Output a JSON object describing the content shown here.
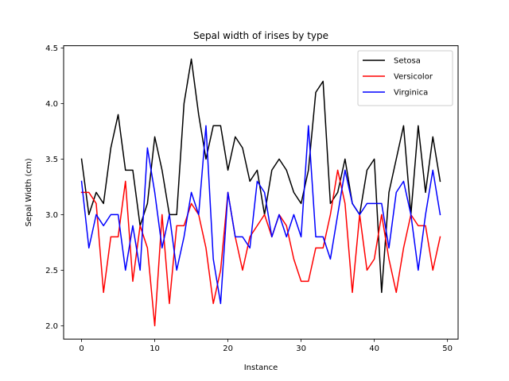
{
  "chart_data": {
    "type": "line",
    "title": "Sepal width of irises by type",
    "xlabel": "Instance",
    "ylabel": "Sepal Width (cm)",
    "xlim": [
      -2.45,
      51.45
    ],
    "ylim": [
      1.88,
      4.52
    ],
    "xticks": [
      0,
      10,
      20,
      30,
      40,
      50
    ],
    "yticks": [
      2.0,
      2.5,
      3.0,
      3.5,
      4.0,
      4.5
    ],
    "ytick_labels": [
      "2.0",
      "2.5",
      "3.0",
      "3.5",
      "4.0",
      "4.5"
    ],
    "grid": false,
    "legend_position": "top-right",
    "x": [
      0,
      1,
      2,
      3,
      4,
      5,
      6,
      7,
      8,
      9,
      10,
      11,
      12,
      13,
      14,
      15,
      16,
      17,
      18,
      19,
      20,
      21,
      22,
      23,
      24,
      25,
      26,
      27,
      28,
      29,
      30,
      31,
      32,
      33,
      34,
      35,
      36,
      37,
      38,
      39,
      40,
      41,
      42,
      43,
      44,
      45,
      46,
      47,
      48,
      49
    ],
    "series": [
      {
        "name": "Setosa",
        "color": "#000000",
        "values": [
          3.5,
          3.0,
          3.2,
          3.1,
          3.6,
          3.9,
          3.4,
          3.4,
          2.9,
          3.1,
          3.7,
          3.4,
          3.0,
          3.0,
          4.0,
          4.4,
          3.9,
          3.5,
          3.8,
          3.8,
          3.4,
          3.7,
          3.6,
          3.3,
          3.4,
          3.0,
          3.4,
          3.5,
          3.4,
          3.2,
          3.1,
          3.4,
          4.1,
          4.2,
          3.1,
          3.2,
          3.5,
          3.1,
          3.0,
          3.4,
          3.5,
          2.3,
          3.2,
          3.5,
          3.8,
          3.0,
          3.8,
          3.2,
          3.7,
          3.3
        ]
      },
      {
        "name": "Versicolor",
        "color": "#ff0000",
        "values": [
          3.2,
          3.2,
          3.1,
          2.3,
          2.8,
          2.8,
          3.3,
          2.4,
          2.9,
          2.7,
          2.0,
          3.0,
          2.2,
          2.9,
          2.9,
          3.1,
          3.0,
          2.7,
          2.2,
          2.5,
          3.2,
          2.8,
          2.5,
          2.8,
          2.9,
          3.0,
          2.8,
          3.0,
          2.9,
          2.6,
          2.4,
          2.4,
          2.7,
          2.7,
          3.0,
          3.4,
          3.1,
          2.3,
          3.0,
          2.5,
          2.6,
          3.0,
          2.6,
          2.3,
          2.7,
          3.0,
          2.9,
          2.9,
          2.5,
          2.8
        ]
      },
      {
        "name": "Virginica",
        "color": "#0000ff",
        "values": [
          3.3,
          2.7,
          3.0,
          2.9,
          3.0,
          3.0,
          2.5,
          2.9,
          2.5,
          3.6,
          3.2,
          2.7,
          3.0,
          2.5,
          2.8,
          3.2,
          3.0,
          3.8,
          2.6,
          2.2,
          3.2,
          2.8,
          2.8,
          2.7,
          3.3,
          3.2,
          2.8,
          3.0,
          2.8,
          3.0,
          2.8,
          3.8,
          2.8,
          2.8,
          2.6,
          3.0,
          3.4,
          3.1,
          3.0,
          3.1,
          3.1,
          3.1,
          2.7,
          3.2,
          3.3,
          3.0,
          2.5,
          3.0,
          3.4,
          3.0
        ]
      }
    ]
  }
}
